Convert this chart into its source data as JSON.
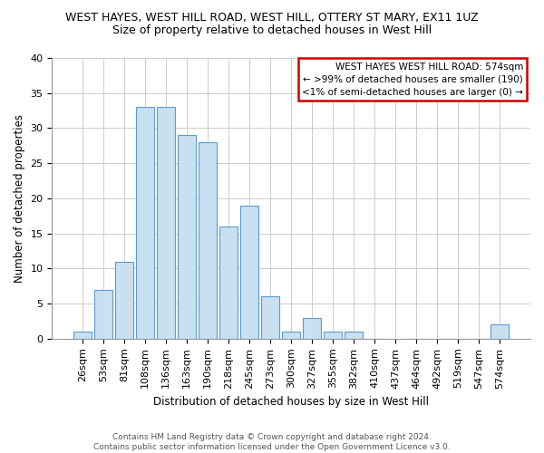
{
  "title_line1": "WEST HAYES, WEST HILL ROAD, WEST HILL, OTTERY ST MARY, EX11 1UZ",
  "title_line2": "Size of property relative to detached houses in West Hill",
  "xlabel": "Distribution of detached houses by size in West Hill",
  "ylabel": "Number of detached properties",
  "categories": [
    "26sqm",
    "53sqm",
    "81sqm",
    "108sqm",
    "136sqm",
    "163sqm",
    "190sqm",
    "218sqm",
    "245sqm",
    "273sqm",
    "300sqm",
    "327sqm",
    "355sqm",
    "382sqm",
    "410sqm",
    "437sqm",
    "464sqm",
    "492sqm",
    "519sqm",
    "547sqm",
    "574sqm"
  ],
  "values": [
    1,
    7,
    11,
    33,
    33,
    29,
    28,
    16,
    19,
    6,
    1,
    3,
    1,
    1,
    0,
    0,
    0,
    0,
    0,
    0,
    2
  ],
  "bar_color": "#c8e0f0",
  "bar_edge_color": "#5b9bd5",
  "ylim": [
    0,
    40
  ],
  "yticks": [
    0,
    5,
    10,
    15,
    20,
    25,
    30,
    35,
    40
  ],
  "legend_title": "WEST HAYES WEST HILL ROAD: 574sqm",
  "legend_line1": "← >99% of detached houses are smaller (190)",
  "legend_line2": "<1% of semi-detached houses are larger (0) →",
  "legend_box_facecolor": "#ffffff",
  "legend_box_edgecolor": "#cc0000",
  "footer_line1": "Contains HM Land Registry data © Crown copyright and database right 2024.",
  "footer_line2": "Contains public sector information licensed under the Open Government Licence v3.0.",
  "background_color": "#ffffff",
  "grid_color": "#cccccc",
  "title1_fontsize": 9,
  "title2_fontsize": 9,
  "ylabel_fontsize": 8.5,
  "xlabel_fontsize": 8.5,
  "tick_fontsize": 8,
  "legend_fontsize": 7.5,
  "footer_fontsize": 6.5
}
